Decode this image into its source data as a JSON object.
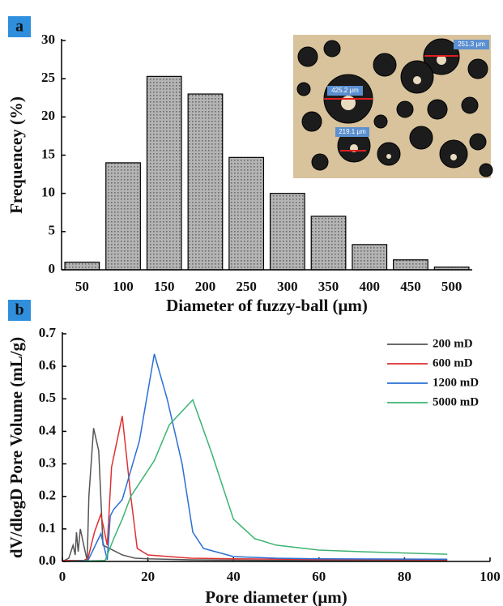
{
  "chart_data": [
    {
      "type": "bar",
      "panel_label": "a",
      "ylabel": "Frequencey (%)",
      "xlabel": "Diameter of fuzzy-ball (μm)",
      "categories": [
        "50",
        "100",
        "150",
        "200",
        "250",
        "300",
        "350",
        "400",
        "450",
        "500"
      ],
      "values": [
        1.0,
        14.0,
        25.3,
        23.0,
        14.7,
        10.0,
        7.0,
        3.3,
        1.3,
        0.35
      ],
      "color": "#b4b4b4",
      "ylim": [
        0,
        30
      ],
      "yticks": [
        0,
        5,
        10,
        15,
        20,
        25,
        30
      ],
      "annotations": [
        "251.3 μm",
        "425.2 μm",
        "219.1 μm"
      ]
    },
    {
      "type": "line",
      "panel_label": "b",
      "ylabel": "dV/dlogD Pore Volume (mL/g)",
      "xlabel": "Pore diameter (μm)",
      "xlim": [
        0,
        100
      ],
      "xticks": [
        0,
        20,
        40,
        60,
        80,
        100
      ],
      "ylim": [
        0,
        0.7
      ],
      "yticks": [
        {
          "value": 0,
          "label": "0.0"
        },
        0.1,
        0.2,
        0.3,
        0.4,
        0.5,
        0.6,
        0.7
      ],
      "legend": "upper right",
      "series": [
        {
          "name": "200 mD",
          "color": "#555555",
          "x": [
            0,
            1.5,
            2,
            2.5,
            3,
            3.3,
            3.7,
            4.2,
            5,
            5.8,
            6.2,
            7.3,
            8.5,
            9.5,
            11,
            14,
            17,
            20,
            30,
            50,
            90
          ],
          "values": [
            0,
            0.01,
            0.03,
            0.05,
            0.02,
            0.09,
            0.03,
            0.1,
            0.05,
            0.003,
            0.2,
            0.41,
            0.34,
            0.05,
            0.04,
            0.02,
            0.01,
            0.008,
            0.005,
            0.003,
            0.003
          ]
        },
        {
          "name": "600 mD",
          "color": "#e03030",
          "x": [
            0,
            5,
            6,
            7.5,
            9,
            10.5,
            11.5,
            14,
            16,
            17.5,
            20,
            25,
            30,
            40,
            60,
            90
          ],
          "values": [
            0.003,
            0.003,
            0.01,
            0.09,
            0.145,
            0.05,
            0.29,
            0.447,
            0.2,
            0.04,
            0.02,
            0.015,
            0.01,
            0.008,
            0.006,
            0.005
          ]
        },
        {
          "name": "1200 mD",
          "color": "#2a6fd6",
          "x": [
            0,
            6,
            9,
            10.5,
            11.2,
            12,
            14,
            16,
            18,
            21.5,
            24.5,
            28,
            30.5,
            33,
            40,
            50,
            60,
            90
          ],
          "values": [
            0,
            0.003,
            0.085,
            0.005,
            0.14,
            0.16,
            0.19,
            0.28,
            0.37,
            0.638,
            0.5,
            0.3,
            0.09,
            0.04,
            0.015,
            0.01,
            0.008,
            0.007
          ]
        },
        {
          "name": "5000 mD",
          "color": "#3cb371",
          "x": [
            0,
            10,
            12,
            14,
            16,
            18,
            21.5,
            25,
            30.5,
            35,
            40,
            45,
            50,
            60,
            70,
            90
          ],
          "values": [
            0,
            0.003,
            0.07,
            0.13,
            0.2,
            0.24,
            0.31,
            0.42,
            0.497,
            0.33,
            0.13,
            0.07,
            0.05,
            0.035,
            0.03,
            0.022
          ]
        }
      ]
    }
  ]
}
